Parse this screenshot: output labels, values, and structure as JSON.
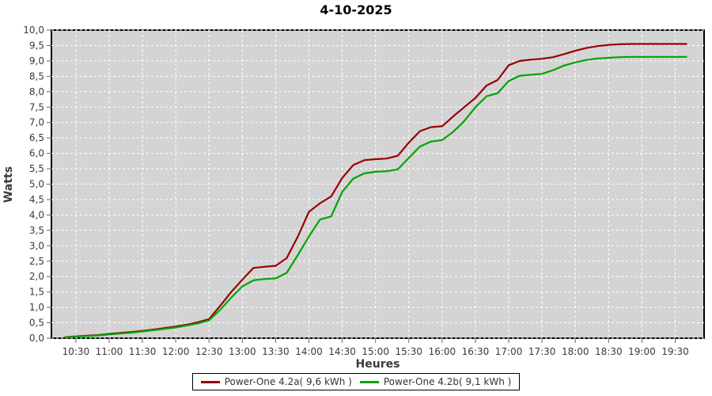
{
  "chart_data": {
    "type": "line",
    "title": "4-10-2025",
    "xlabel": "Heures",
    "ylabel": "Watts",
    "ylim": [
      0,
      10
    ],
    "y_tick_labels": [
      "0,0",
      "0,5",
      "1,0",
      "1,5",
      "2,0",
      "2,5",
      "3,0",
      "3,5",
      "4,0",
      "4,5",
      "5,0",
      "5,5",
      "6,0",
      "6,5",
      "7,0",
      "7,5",
      "8,0",
      "8,5",
      "9,0",
      "9,5",
      "10,0"
    ],
    "x_axis_min_minutes": 608,
    "x_axis_max_minutes": 1196,
    "x_tick_minutes": [
      630,
      660,
      690,
      720,
      750,
      780,
      810,
      840,
      870,
      900,
      930,
      960,
      990,
      1020,
      1050,
      1080,
      1110,
      1140,
      1170
    ],
    "x_tick_labels": [
      "10:30",
      "11:00",
      "11:30",
      "12:00",
      "12:30",
      "13:00",
      "13:30",
      "14:00",
      "14:30",
      "15:00",
      "15:30",
      "16:00",
      "16:30",
      "17:00",
      "17:30",
      "18:00",
      "18:30",
      "19:00",
      "19:30"
    ],
    "grid": true,
    "legend_position": "bottom-center",
    "x_data_start_minutes": 620,
    "x_data_step_minutes": 10,
    "series": [
      {
        "name": "Power-One 4.2a( 9,6 kWh )",
        "total_energy": "9,6 kWh",
        "color": "#990000",
        "values": [
          0.03,
          0.06,
          0.08,
          0.1,
          0.14,
          0.17,
          0.2,
          0.24,
          0.28,
          0.33,
          0.38,
          0.44,
          0.52,
          0.62,
          1.05,
          1.5,
          1.9,
          2.28,
          2.32,
          2.35,
          2.6,
          3.3,
          4.1,
          4.38,
          4.6,
          5.2,
          5.62,
          5.78,
          5.81,
          5.83,
          5.92,
          6.35,
          6.72,
          6.85,
          6.88,
          7.2,
          7.5,
          7.8,
          8.2,
          8.38,
          8.86,
          9.0,
          9.04,
          9.07,
          9.12,
          9.22,
          9.33,
          9.42,
          9.48,
          9.52,
          9.54,
          9.55,
          9.55,
          9.55,
          9.55,
          9.55,
          9.55
        ]
      },
      {
        "name": "Power-One 4.2b( 9,1 kWh )",
        "total_energy": "9,1 kWh",
        "color": "#00a500",
        "values": [
          0.02,
          0.05,
          0.07,
          0.09,
          0.12,
          0.15,
          0.18,
          0.22,
          0.26,
          0.3,
          0.35,
          0.41,
          0.48,
          0.58,
          0.92,
          1.32,
          1.68,
          1.88,
          1.92,
          1.94,
          2.12,
          2.7,
          3.3,
          3.85,
          3.95,
          4.75,
          5.18,
          5.35,
          5.4,
          5.42,
          5.48,
          5.85,
          6.22,
          6.38,
          6.43,
          6.7,
          7.05,
          7.5,
          7.85,
          7.95,
          8.35,
          8.52,
          8.55,
          8.58,
          8.7,
          8.85,
          8.95,
          9.03,
          9.08,
          9.1,
          9.12,
          9.13,
          9.13,
          9.13,
          9.13,
          9.13,
          9.13
        ]
      }
    ],
    "colors": {
      "plot_background": "#d4d4d4",
      "grid_line": "#ffffff",
      "plot_border": "#000000",
      "tick_label": "#3a3a3a",
      "tick_mark": "#666666",
      "legend_text": "#333333",
      "page_background": "#ffffff"
    }
  }
}
